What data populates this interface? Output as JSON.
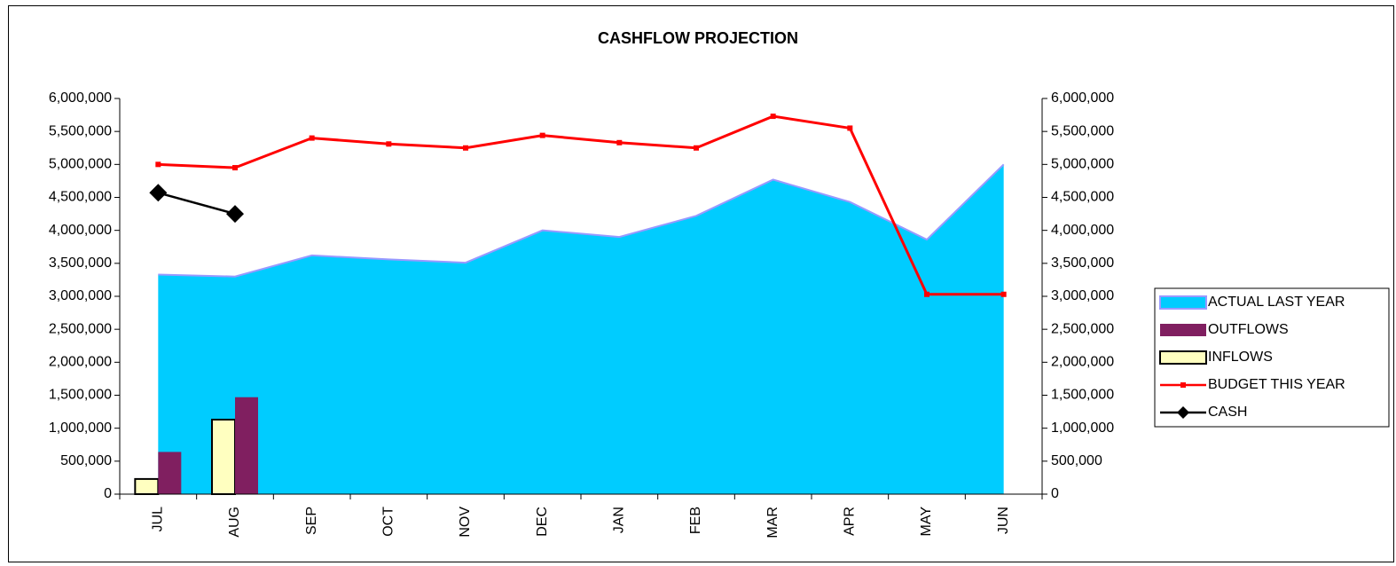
{
  "chart_data": {
    "type": "combo",
    "title": "CASHFLOW PROJECTION",
    "categories": [
      "JUL",
      "AUG",
      "SEP",
      "OCT",
      "NOV",
      "DEC",
      "JAN",
      "FEB",
      "MAR",
      "APR",
      "MAY",
      "JUN"
    ],
    "series": [
      {
        "name": "ACTUAL LAST YEAR",
        "type": "area",
        "color": "#00ccff",
        "values": [
          3330000,
          3300000,
          3620000,
          3560000,
          3510000,
          4000000,
          3900000,
          4220000,
          4770000,
          4430000,
          3860000,
          5000000
        ]
      },
      {
        "name": "OUTFLOWS",
        "type": "bar",
        "color": "#801f60",
        "values": [
          640000,
          1470000,
          null,
          null,
          null,
          null,
          null,
          null,
          null,
          null,
          null,
          null
        ]
      },
      {
        "name": "INFLOWS",
        "type": "bar",
        "color": "#ffffc0",
        "values": [
          230000,
          1130000,
          null,
          null,
          null,
          null,
          null,
          null,
          null,
          null,
          null,
          null
        ]
      },
      {
        "name": "BUDGET THIS YEAR",
        "type": "line",
        "color": "#ff0000",
        "values": [
          5000000,
          4950000,
          5400000,
          5310000,
          5250000,
          5440000,
          5330000,
          5250000,
          5730000,
          5550000,
          3030000,
          3030000
        ]
      },
      {
        "name": "CASH",
        "type": "line",
        "color": "#000000",
        "values": [
          4570000,
          4250000,
          null,
          null,
          null,
          null,
          null,
          null,
          null,
          null,
          null,
          null
        ]
      }
    ],
    "ylim": [
      0,
      6000000
    ],
    "yticks": [
      0,
      {
        "value": 500000,
        "label": "500,000"
      },
      {
        "value": 1000000,
        "label": "1,000,000"
      },
      {
        "value": 1500000,
        "label": "1,500,000"
      },
      {
        "value": 2000000,
        "label": "2,000,000"
      },
      {
        "value": 2500000,
        "label": "2,500,000"
      },
      {
        "value": 3000000,
        "label": "3,000,000"
      },
      {
        "value": 3500000,
        "label": "3,500,000"
      },
      {
        "value": 4000000,
        "label": "4,000,000"
      },
      {
        "value": 4500000,
        "label": "4,500,000"
      },
      {
        "value": 5000000,
        "label": "5,000,000"
      },
      {
        "value": 5500000,
        "label": "5,500,000"
      },
      {
        "value": 6000000,
        "label": "6,000,000"
      }
    ],
    "y2lim": [
      0,
      6000000
    ],
    "y2ticks": [
      0,
      {
        "value": 500000,
        "label": "500,000"
      },
      {
        "value": 1000000,
        "label": "1,000,000"
      },
      {
        "value": 1500000,
        "label": "1,500,000"
      },
      {
        "value": 2000000,
        "label": "2,000,000"
      },
      {
        "value": 2500000,
        "label": "2,500,000"
      },
      {
        "value": 3000000,
        "label": "3,000,000"
      },
      {
        "value": 3500000,
        "label": "3,500,000"
      },
      {
        "value": 4000000,
        "label": "4,000,000"
      },
      {
        "value": 4500000,
        "label": "4,500,000"
      },
      {
        "value": 5000000,
        "label": "5,000,000"
      },
      {
        "value": 5500000,
        "label": "5,500,000"
      },
      {
        "value": 6000000,
        "label": "6,000,000"
      }
    ],
    "legend": "right"
  }
}
